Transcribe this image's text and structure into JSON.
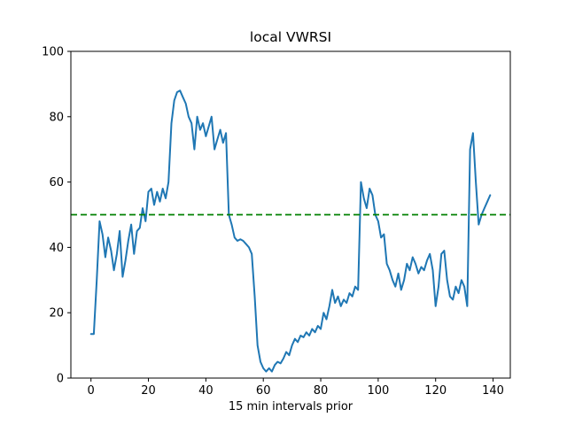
{
  "chart_data": {
    "type": "line",
    "title": "local VWRSI",
    "xlabel": "15 min intervals prior",
    "ylabel": "",
    "xlim": [
      -7,
      146
    ],
    "ylim": [
      0,
      100
    ],
    "x_ticks": [
      0,
      20,
      40,
      60,
      80,
      100,
      120,
      140
    ],
    "y_ticks": [
      0,
      20,
      40,
      60,
      80,
      100
    ],
    "grid": false,
    "legend_position": "none",
    "x_start": 0,
    "x_step": 1,
    "series": [
      {
        "name": "local VWRSI",
        "color": "#1f77b4",
        "line_style": "solid",
        "line_width": 2,
        "values": [
          13.5,
          13.5,
          30,
          48,
          44,
          37,
          43,
          39,
          33,
          38,
          45,
          31,
          36,
          42,
          47,
          38,
          45,
          46,
          52,
          48,
          57,
          58,
          53,
          57,
          54,
          58,
          55,
          60,
          78,
          85,
          87.5,
          88,
          86,
          84,
          80,
          78,
          70,
          80,
          76,
          78,
          74,
          77,
          80,
          70,
          73,
          76,
          72,
          75,
          50,
          47,
          43,
          42,
          42.5,
          42,
          41,
          40,
          38,
          25,
          10,
          5,
          3,
          2,
          3,
          2,
          4,
          5,
          4.5,
          6,
          8,
          7,
          10,
          12,
          11,
          13,
          12.5,
          14,
          13,
          15,
          14,
          16,
          15,
          20,
          18,
          22,
          27,
          23,
          25,
          22,
          24,
          23,
          26,
          25,
          28,
          27,
          60,
          55,
          52,
          58,
          56,
          50,
          48,
          43,
          44,
          35,
          33,
          30,
          28,
          32,
          27,
          30,
          35,
          33,
          37,
          35,
          32,
          34,
          33,
          36,
          38,
          33,
          22,
          28,
          38,
          39,
          30,
          25,
          24,
          28,
          26,
          30,
          28,
          22,
          70,
          75,
          60,
          47,
          50,
          52,
          54,
          56
        ]
      }
    ],
    "reference_line": {
      "y": 50,
      "color": "#008000",
      "style": "dashed"
    }
  }
}
